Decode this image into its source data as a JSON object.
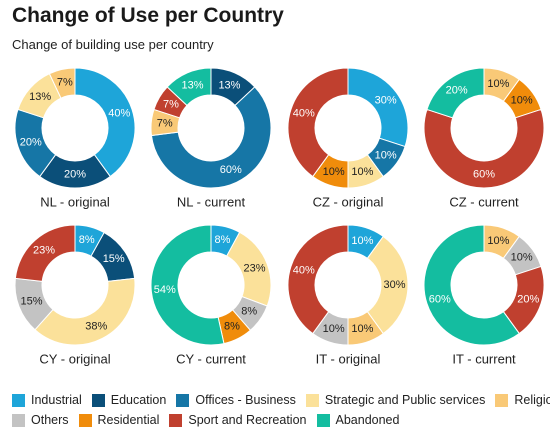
{
  "title": "Change of Use per Country",
  "subtitle": "Change of building use per country",
  "chart_data": {
    "type": "pie",
    "legend_position": "bottom",
    "categories": [
      "Industrial",
      "Education",
      "Offices - Business",
      "Strategic and Public services",
      "Religious",
      "Others",
      "Residential",
      "Sport and Recreation",
      "Abandoned"
    ],
    "colors": {
      "Industrial": "#1ea5d9",
      "Education": "#0b4f79",
      "Offices - Business": "#1676a6",
      "Strategic and Public services": "#fbe19a",
      "Religious": "#f9c977",
      "Others": "#c3c3c3",
      "Residential": "#f08c0b",
      "Sport and Recreation": "#c0402f",
      "Abandoned": "#14bda0"
    },
    "legend_rows": [
      [
        "Industrial",
        "Education",
        "Offices - Business",
        "Strategic and Public services",
        "Religious"
      ],
      [
        "Others",
        "Residential",
        "Sport and Recreation",
        "Abandoned"
      ]
    ],
    "charts": [
      {
        "label": "NL - original",
        "slices": [
          {
            "category": "Industrial",
            "value": 40,
            "label": "40%"
          },
          {
            "category": "Education",
            "value": 20,
            "label": "20%"
          },
          {
            "category": "Offices - Business",
            "value": 20,
            "label": "20%"
          },
          {
            "category": "Strategic and Public services",
            "value": 13,
            "label": "13%"
          },
          {
            "category": "Religious",
            "value": 7,
            "label": "7%"
          }
        ]
      },
      {
        "label": "NL - current",
        "slices": [
          {
            "category": "Education",
            "value": 13,
            "label": "13%"
          },
          {
            "category": "Offices - Business",
            "value": 60,
            "label": "60%"
          },
          {
            "category": "Religious",
            "value": 7,
            "label": "7%"
          },
          {
            "category": "Sport and Recreation",
            "value": 7,
            "label": "7%"
          },
          {
            "category": "Abandoned",
            "value": 13,
            "label": "13%"
          }
        ]
      },
      {
        "label": "CZ - original",
        "slices": [
          {
            "category": "Industrial",
            "value": 30,
            "label": "30%"
          },
          {
            "category": "Offices - Business",
            "value": 10,
            "label": "10%"
          },
          {
            "category": "Strategic and Public services",
            "value": 10,
            "label": "10%"
          },
          {
            "category": "Residential",
            "value": 10,
            "label": "10%"
          },
          {
            "category": "Sport and Recreation",
            "value": 40,
            "label": "40%"
          }
        ]
      },
      {
        "label": "CZ - current",
        "slices": [
          {
            "category": "Religious",
            "value": 10,
            "label": "10%"
          },
          {
            "category": "Residential",
            "value": 10,
            "label": "10%"
          },
          {
            "category": "Sport and Recreation",
            "value": 60,
            "label": "60%"
          },
          {
            "category": "Abandoned",
            "value": 20,
            "label": "20%"
          }
        ]
      },
      {
        "label": "CY - original",
        "slices": [
          {
            "category": "Industrial",
            "value": 8,
            "label": "8%"
          },
          {
            "category": "Education",
            "value": 15,
            "label": "15%"
          },
          {
            "category": "Strategic and Public services",
            "value": 38,
            "label": "38%"
          },
          {
            "category": "Others",
            "value": 15,
            "label": "15%"
          },
          {
            "category": "Sport and Recreation",
            "value": 23,
            "label": "23%"
          }
        ]
      },
      {
        "label": "CY - current",
        "slices": [
          {
            "category": "Industrial",
            "value": 8,
            "label": "8%"
          },
          {
            "category": "Strategic and Public services",
            "value": 23,
            "label": "23%"
          },
          {
            "category": "Others",
            "value": 8,
            "label": "8%"
          },
          {
            "category": "Residential",
            "value": 8,
            "label": "8%"
          },
          {
            "category": "Abandoned",
            "value": 54,
            "label": "54%"
          }
        ]
      },
      {
        "label": "IT - original",
        "slices": [
          {
            "category": "Industrial",
            "value": 10,
            "label": "10%"
          },
          {
            "category": "Strategic and Public services",
            "value": 30,
            "label": "30%"
          },
          {
            "category": "Religious",
            "value": 10,
            "label": "10%"
          },
          {
            "category": "Others",
            "value": 10,
            "label": "10%"
          },
          {
            "category": "Sport and Recreation",
            "value": 40,
            "label": "40%"
          }
        ]
      },
      {
        "label": "IT - current",
        "slices": [
          {
            "category": "Religious",
            "value": 10,
            "label": "10%"
          },
          {
            "category": "Others",
            "value": 10,
            "label": "10%"
          },
          {
            "category": "Sport and Recreation",
            "value": 20,
            "label": "20%"
          },
          {
            "category": "Abandoned",
            "value": 60,
            "label": "60%"
          }
        ]
      }
    ]
  }
}
